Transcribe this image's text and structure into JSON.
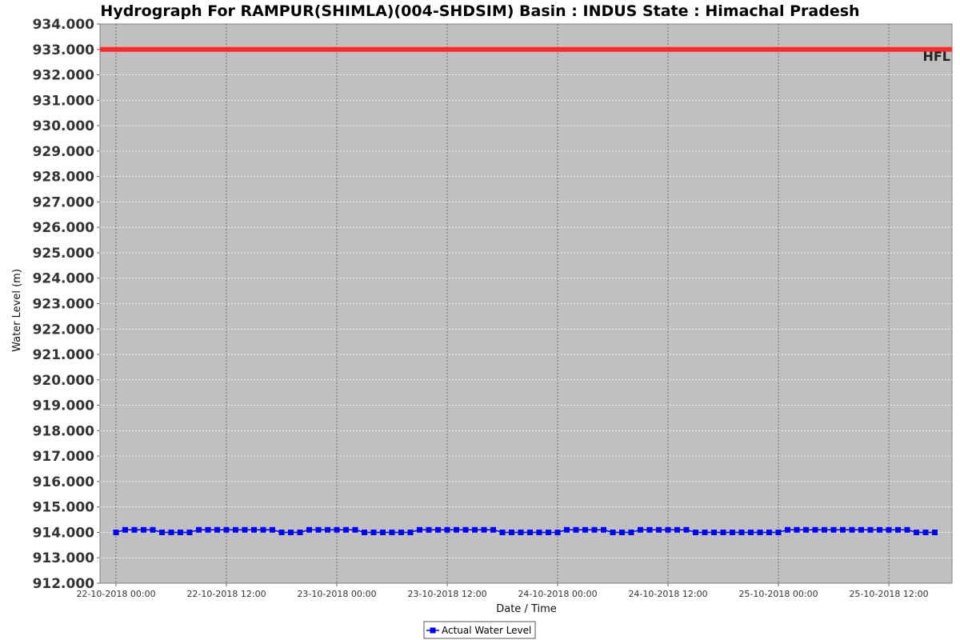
{
  "chart_data": {
    "type": "line",
    "title": "Hydrograph For RAMPUR(SHIMLA)(004-SHDSIM) Basin : INDUS State : Himachal Pradesh",
    "xlabel": "Date / Time",
    "ylabel": "Water Level (m)",
    "ylim": [
      912.0,
      934.0
    ],
    "xlim": [
      "22-10-2018 00:00",
      "25-10-2018 18:00"
    ],
    "yticks": [
      "912.000",
      "913.000",
      "914.000",
      "915.000",
      "916.000",
      "917.000",
      "918.000",
      "919.000",
      "920.000",
      "921.000",
      "922.000",
      "923.000",
      "924.000",
      "925.000",
      "926.000",
      "927.000",
      "928.000",
      "929.000",
      "930.000",
      "931.000",
      "932.000",
      "933.000",
      "934.000"
    ],
    "xticks": [
      {
        "label": "22-10-2018 00:00",
        "hours": 0
      },
      {
        "label": "22-10-2018 12:00",
        "hours": 12
      },
      {
        "label": "23-10-2018 00:00",
        "hours": 24
      },
      {
        "label": "23-10-2018 12:00",
        "hours": 36
      },
      {
        "label": "24-10-2018 00:00",
        "hours": 48
      },
      {
        "label": "24-10-2018 12:00",
        "hours": 60
      },
      {
        "label": "25-10-2018 00:00",
        "hours": 72
      },
      {
        "label": "25-10-2018 12:00",
        "hours": 84
      }
    ],
    "grid": true,
    "background": "#c0c0c0",
    "legend_position": "bottom-center",
    "reference_lines": [
      {
        "label": "HFL",
        "y": 933.0,
        "color": "#ff2a2a"
      }
    ],
    "series": [
      {
        "name": "Actual Water Level",
        "color": "#0000ff",
        "marker": "square",
        "x_start": "22-10-2018 00:00",
        "x_step_hours": 1,
        "values": [
          914.0,
          914.1,
          914.1,
          914.1,
          914.1,
          914.0,
          914.0,
          914.0,
          914.0,
          914.1,
          914.1,
          914.1,
          914.1,
          914.1,
          914.1,
          914.1,
          914.1,
          914.1,
          914.0,
          914.0,
          914.0,
          914.1,
          914.1,
          914.1,
          914.1,
          914.1,
          914.1,
          914.0,
          914.0,
          914.0,
          914.0,
          914.0,
          914.0,
          914.1,
          914.1,
          914.1,
          914.1,
          914.1,
          914.1,
          914.1,
          914.1,
          914.1,
          914.0,
          914.0,
          914.0,
          914.0,
          914.0,
          914.0,
          914.0,
          914.1,
          914.1,
          914.1,
          914.1,
          914.1,
          914.0,
          914.0,
          914.0,
          914.1,
          914.1,
          914.1,
          914.1,
          914.1,
          914.1,
          914.0,
          914.0,
          914.0,
          914.0,
          914.0,
          914.0,
          914.0,
          914.0,
          914.0,
          914.0,
          914.1,
          914.1,
          914.1,
          914.1,
          914.1,
          914.1,
          914.1,
          914.1,
          914.1,
          914.1,
          914.1,
          914.1,
          914.1,
          914.1,
          914.0,
          914.0,
          914.0
        ]
      }
    ]
  }
}
